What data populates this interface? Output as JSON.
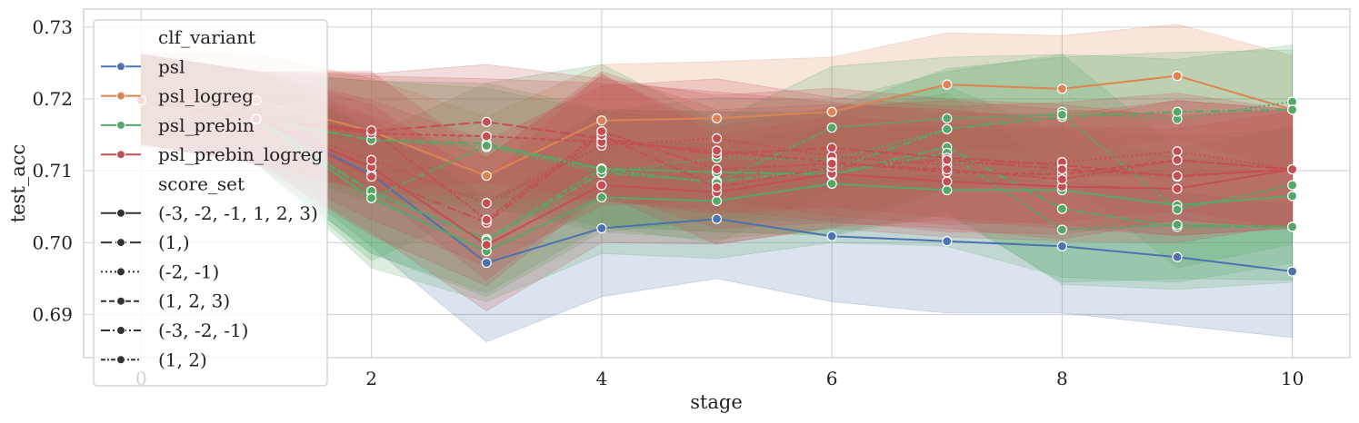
{
  "chart_data": {
    "type": "line",
    "xlabel": "stage",
    "ylabel": "test_acc",
    "xlim": [
      -0.5,
      10.5
    ],
    "ylim": [
      0.684,
      0.7325
    ],
    "x_ticks": [
      0,
      2,
      4,
      6,
      8,
      10
    ],
    "y_ticks": [
      0.69,
      0.7,
      0.71,
      0.72,
      0.73
    ],
    "y_tick_labels": [
      "0.69",
      "0.70",
      "0.71",
      "0.72",
      "0.73"
    ],
    "grid": true,
    "legend_placement": "upper-left",
    "hue_title": "clf_variant",
    "style_title": "score_set",
    "hue_entries": [
      {
        "name": "psl",
        "color": "#4c72b0"
      },
      {
        "name": "psl_logreg",
        "color": "#dd8452"
      },
      {
        "name": "psl_prebin",
        "color": "#55a868"
      },
      {
        "name": "psl_prebin_logreg",
        "color": "#c44e52"
      }
    ],
    "style_entries": [
      {
        "name": "(-3, -2, -1, 1, 2, 3)",
        "dash": "none"
      },
      {
        "name": "(1,)",
        "dash": "12 4"
      },
      {
        "name": "(-2, -1)",
        "dash": "2 3"
      },
      {
        "name": "(1, 2, 3)",
        "dash": "6 3"
      },
      {
        "name": "(-3, -2, -1)",
        "dash": "10 3 2 3"
      },
      {
        "name": "(1, 2)",
        "dash": "5 2 2 2"
      }
    ],
    "x": [
      0,
      1,
      2,
      3,
      4,
      5,
      6,
      7,
      8,
      9,
      10
    ],
    "series": [
      {
        "hue": "psl",
        "style": "(-3, -2, -1, 1, 2, 3)",
        "values": [
          0.7198,
          0.7172,
          0.7095,
          0.6972,
          0.702,
          0.7033,
          0.7009,
          0.7002,
          0.6995,
          0.698,
          0.696
        ],
        "lower": [
          0.7135,
          0.712,
          0.6995,
          0.6862,
          0.6925,
          0.695,
          0.6918,
          0.6902,
          0.6902,
          0.6885,
          0.6868
        ],
        "upper": [
          0.7262,
          0.7232,
          0.7172,
          0.7062,
          0.7102,
          0.7112,
          0.7092,
          0.7092,
          0.7085,
          0.707,
          0.7052
        ]
      },
      {
        "hue": "psl_logreg",
        "style": "(-3, -2, -1, 1, 2, 3)",
        "values": [
          0.7198,
          0.7198,
          0.7155,
          0.7093,
          0.717,
          0.7173,
          0.7182,
          0.722,
          0.7214,
          0.7232,
          0.7185
        ],
        "lower": [
          0.7138,
          0.7135,
          0.7075,
          0.7012,
          0.7085,
          0.7088,
          0.7105,
          0.7135,
          0.7125,
          0.7145,
          0.7098
        ],
        "upper": [
          0.7265,
          0.7262,
          0.7228,
          0.7175,
          0.7248,
          0.7252,
          0.7258,
          0.7292,
          0.7288,
          0.7304,
          0.726
        ]
      },
      {
        "hue": "psl_prebin",
        "style": "(-3, -2, -1, 1, 2, 3)",
        "values": [
          0.7198,
          0.7172,
          0.7062,
          0.6988,
          0.7063,
          0.7058,
          0.7082,
          0.7073,
          0.7073,
          0.7052,
          0.7065
        ],
        "lower": [
          0.7138,
          0.711,
          0.6965,
          0.6918,
          0.6985,
          0.6978,
          0.7,
          0.6995,
          0.6952,
          0.6945,
          0.6972
        ],
        "upper": [
          0.7262,
          0.7238,
          0.7158,
          0.7058,
          0.7142,
          0.7138,
          0.7162,
          0.7158,
          0.7158,
          0.7148,
          0.7158
        ]
      },
      {
        "hue": "psl_prebin",
        "style": "(1,)",
        "values": [
          0.7198,
          0.7172,
          0.7143,
          0.7138,
          0.7103,
          0.7098,
          0.7095,
          0.7133,
          0.7047,
          0.7022,
          0.7022
        ],
        "lower": [
          0.7138,
          0.711,
          0.7055,
          0.7055,
          0.7025,
          0.7015,
          0.7012,
          0.7045,
          0.6942,
          0.6935,
          0.6945
        ],
        "upper": [
          0.7262,
          0.7238,
          0.7225,
          0.7222,
          0.7185,
          0.7182,
          0.7182,
          0.7218,
          0.715,
          0.7118,
          0.7108
        ]
      },
      {
        "hue": "psl_prebin",
        "style": "(-2, -1)",
        "values": [
          0.7198,
          0.7172,
          0.7143,
          0.7133,
          0.7097,
          0.7118,
          0.7115,
          0.7158,
          0.7182,
          0.7172,
          0.7196
        ],
        "lower": [
          0.7138,
          0.711,
          0.7058,
          0.705,
          0.7015,
          0.7032,
          0.703,
          0.7075,
          0.7098,
          0.7088,
          0.7112
        ],
        "upper": [
          0.7262,
          0.7238,
          0.7225,
          0.7215,
          0.7182,
          0.7202,
          0.7198,
          0.7238,
          0.7262,
          0.7255,
          0.7275
        ]
      },
      {
        "hue": "psl_prebin",
        "style": "(1, 2, 3)",
        "values": [
          0.7198,
          0.7172,
          0.707,
          0.7005,
          0.7103,
          0.7098,
          0.7095,
          0.7125,
          0.7018,
          0.7025,
          0.7022
        ],
        "lower": [
          0.7138,
          0.711,
          0.6985,
          0.693,
          0.7022,
          0.7015,
          0.701,
          0.704,
          0.6945,
          0.695,
          0.6948
        ],
        "upper": [
          0.7262,
          0.7238,
          0.7155,
          0.7085,
          0.7185,
          0.7182,
          0.7178,
          0.7208,
          0.7095,
          0.7102,
          0.71
        ]
      },
      {
        "hue": "psl_prebin",
        "style": "(-3, -2, -1)",
        "values": [
          0.7198,
          0.7172,
          0.7072,
          0.7003,
          0.7097,
          0.7085,
          0.7102,
          0.7158,
          0.7175,
          0.7182,
          0.7185
        ],
        "lower": [
          0.7138,
          0.711,
          0.6985,
          0.6925,
          0.7015,
          0.7005,
          0.702,
          0.7075,
          0.709,
          0.7098,
          0.71
        ],
        "upper": [
          0.7262,
          0.7238,
          0.7158,
          0.7085,
          0.7182,
          0.7168,
          0.7185,
          0.7242,
          0.7258,
          0.7265,
          0.7268
        ]
      },
      {
        "hue": "psl_prebin",
        "style": "(1, 2)",
        "values": [
          0.7198,
          0.7172,
          0.7062,
          0.7135,
          0.7102,
          0.7083,
          0.716,
          0.7173,
          0.7178,
          0.7046,
          0.708
        ],
        "lower": [
          0.7138,
          0.711,
          0.6975,
          0.705,
          0.7022,
          0.7,
          0.7075,
          0.7088,
          0.7095,
          0.6965,
          0.6998
        ],
        "upper": [
          0.7262,
          0.7238,
          0.7148,
          0.7222,
          0.7248,
          0.7168,
          0.7245,
          0.7258,
          0.7262,
          0.713,
          0.7162
        ]
      },
      {
        "hue": "psl_prebin_logreg",
        "style": "(-3, -2, -1, 1, 2, 3)",
        "values": [
          0.7198,
          0.7172,
          0.7105,
          0.6997,
          0.708,
          0.707,
          0.7096,
          0.7085,
          0.7078,
          0.7075,
          0.7102
        ],
        "lower": [
          0.7135,
          0.711,
          0.7015,
          0.6905,
          0.7,
          0.6998,
          0.702,
          0.7008,
          0.7002,
          0.7,
          0.7025
        ],
        "upper": [
          0.7262,
          0.7238,
          0.7192,
          0.7088,
          0.7235,
          0.7148,
          0.7175,
          0.7165,
          0.716,
          0.7158,
          0.7182
        ]
      },
      {
        "hue": "psl_prebin_logreg",
        "style": "(1,)",
        "values": [
          0.7198,
          0.7172,
          0.7155,
          0.7168,
          0.7145,
          0.7123,
          0.7132,
          0.7118,
          0.7108,
          0.7092,
          0.7102
        ],
        "lower": [
          0.7138,
          0.711,
          0.7072,
          0.7085,
          0.706,
          0.704,
          0.705,
          0.7035,
          0.7025,
          0.701,
          0.702
        ],
        "upper": [
          0.7262,
          0.7238,
          0.7235,
          0.7248,
          0.7228,
          0.7205,
          0.7215,
          0.72,
          0.7192,
          0.7175,
          0.7185
        ]
      },
      {
        "hue": "psl_prebin_logreg",
        "style": "(-2, -1)",
        "values": [
          0.7198,
          0.7172,
          0.7115,
          0.7055,
          0.7135,
          0.7145,
          0.712,
          0.7108,
          0.7112,
          0.7127,
          0.7102
        ],
        "lower": [
          0.7138,
          0.711,
          0.7032,
          0.6968,
          0.7052,
          0.706,
          0.7038,
          0.7025,
          0.703,
          0.7045,
          0.702
        ],
        "upper": [
          0.7262,
          0.7238,
          0.7198,
          0.7142,
          0.7218,
          0.7228,
          0.7202,
          0.719,
          0.7195,
          0.7208,
          0.7185
        ]
      },
      {
        "hue": "psl_prebin_logreg",
        "style": "(1, 2, 3)",
        "values": [
          0.7198,
          0.7172,
          0.7152,
          0.7148,
          0.714,
          0.7128,
          0.7112,
          0.7098,
          0.7095,
          0.7115,
          0.7102
        ],
        "lower": [
          0.7138,
          0.711,
          0.707,
          0.7065,
          0.7058,
          0.7045,
          0.703,
          0.7015,
          0.7012,
          0.7032,
          0.702
        ],
        "upper": [
          0.7262,
          0.7238,
          0.7232,
          0.7228,
          0.7222,
          0.721,
          0.7195,
          0.718,
          0.7178,
          0.7198,
          0.7185
        ]
      },
      {
        "hue": "psl_prebin_logreg",
        "style": "(-3, -2, -1)",
        "values": [
          0.7198,
          0.7172,
          0.7092,
          0.7028,
          0.715,
          0.7077,
          0.7105,
          0.7115,
          0.7102,
          0.7093,
          0.7102
        ],
        "lower": [
          0.7138,
          0.711,
          0.701,
          0.694,
          0.7068,
          0.6998,
          0.7022,
          0.7032,
          0.702,
          0.701,
          0.702
        ],
        "upper": [
          0.7262,
          0.7238,
          0.7175,
          0.7118,
          0.7232,
          0.716,
          0.7188,
          0.7198,
          0.7185,
          0.7178,
          0.7185
        ]
      },
      {
        "hue": "psl_prebin_logreg",
        "style": "(1, 2)",
        "values": [
          0.7198,
          0.7172,
          0.7156,
          0.7032,
          0.7155,
          0.7102,
          0.711,
          0.7102,
          0.7088,
          0.7115,
          0.7102
        ],
        "lower": [
          0.7138,
          0.711,
          0.7075,
          0.6948,
          0.7072,
          0.702,
          0.7028,
          0.702,
          0.7005,
          0.7032,
          0.702
        ],
        "upper": [
          0.7262,
          0.7238,
          0.7238,
          0.7118,
          0.7238,
          0.7185,
          0.7192,
          0.7185,
          0.717,
          0.7198,
          0.7185
        ]
      }
    ]
  }
}
